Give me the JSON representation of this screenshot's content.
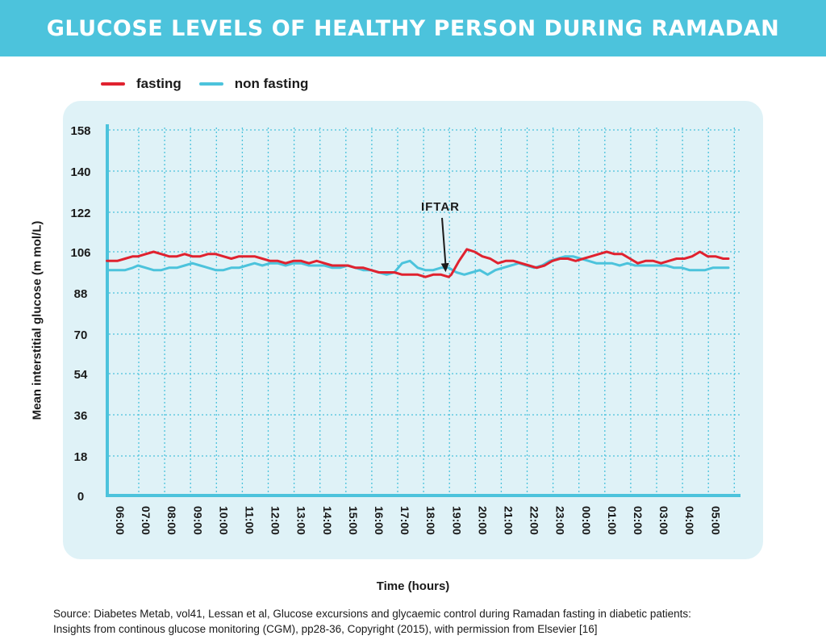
{
  "title": "GLUCOSE LEVELS OF HEALTHY PERSON DURING RAMADAN",
  "legend": {
    "fasting": "fasting",
    "non_fasting": "non fasting"
  },
  "colors": {
    "banner": "#4cc3dc",
    "panel": "#dff2f7",
    "grid": "#4cc3dc",
    "fasting": "#e0222f",
    "non_fasting": "#4cc3dc"
  },
  "source": {
    "line1": "Source: Diabetes Metab, vol41, Lessan et  al, Glucose excursions and glycaemic control during Ramadan fasting in diabetic patients:",
    "line2": "Insights from continous glucose monitoring (CGM), pp28-36, Copyright (2015), with permission from Elsevier [16]"
  },
  "chart_data": {
    "type": "line",
    "xlabel": "Time (hours)",
    "ylabel": "Mean interstitial glucose (m mol/L)",
    "x_ticks": [
      "06:00",
      "07:00",
      "08:00",
      "09:00",
      "10:00",
      "11:00",
      "12:00",
      "13:00",
      "14:00",
      "15:00",
      "16:00",
      "17:00",
      "18:00",
      "19:00",
      "20:00",
      "21:00",
      "22:00",
      "23:00",
      "00:00",
      "01:00",
      "02:00",
      "03:00",
      "04:00",
      "05:00"
    ],
    "y_ticks": [
      0,
      18,
      36,
      54,
      70,
      88,
      106,
      122,
      140,
      158
    ],
    "grid": true,
    "legend_position": "top-left",
    "annotation": {
      "text": "IFTAR",
      "x": 19.1,
      "y": 95
    },
    "series": [
      {
        "name": "fasting",
        "color": "#e0222f",
        "x": [
          5.8,
          6.2,
          6.5,
          6.8,
          7.0,
          7.3,
          7.6,
          7.9,
          8.2,
          8.5,
          8.8,
          9.1,
          9.4,
          9.7,
          10.0,
          10.3,
          10.6,
          10.9,
          11.2,
          11.5,
          11.8,
          12.1,
          12.4,
          12.7,
          13.0,
          13.3,
          13.6,
          13.9,
          14.2,
          14.5,
          14.8,
          15.1,
          15.4,
          15.7,
          16.0,
          16.3,
          16.6,
          16.9,
          17.2,
          17.5,
          17.8,
          18.1,
          18.4,
          18.7,
          19.0,
          19.1,
          19.4,
          19.7,
          20.0,
          20.3,
          20.6,
          20.9,
          21.2,
          21.5,
          21.8,
          22.1,
          22.4,
          22.7,
          23.0,
          23.3,
          23.6,
          23.9,
          24.2,
          24.5,
          24.8,
          25.1,
          25.4,
          25.7,
          26.0,
          26.3,
          26.6,
          26.9,
          27.2,
          27.5,
          27.8,
          28.1,
          28.4,
          28.7,
          29.0,
          29.3,
          29.6,
          29.8
        ],
        "y": [
          102,
          102,
          103,
          104,
          104,
          105,
          106,
          105,
          104,
          104,
          105,
          104,
          104,
          105,
          105,
          104,
          103,
          104,
          104,
          104,
          103,
          102,
          102,
          101,
          102,
          102,
          101,
          102,
          101,
          100,
          100,
          100,
          99,
          99,
          98,
          97,
          97,
          97,
          96,
          96,
          96,
          95,
          96,
          96,
          95,
          96,
          102,
          107,
          106,
          104,
          103,
          101,
          102,
          102,
          101,
          100,
          99,
          100,
          102,
          103,
          103,
          102,
          103,
          104,
          105,
          106,
          105,
          105,
          103,
          101,
          102,
          102,
          101,
          102,
          103,
          103,
          104,
          106,
          104,
          104,
          103,
          103
        ]
      },
      {
        "name": "non fasting",
        "color": "#4cc3dc",
        "x": [
          5.8,
          6.2,
          6.5,
          6.8,
          7.0,
          7.3,
          7.6,
          7.9,
          8.2,
          8.5,
          8.8,
          9.1,
          9.4,
          9.7,
          10.0,
          10.3,
          10.6,
          10.9,
          11.2,
          11.5,
          11.8,
          12.1,
          12.4,
          12.7,
          13.0,
          13.3,
          13.6,
          13.9,
          14.2,
          14.5,
          14.8,
          15.1,
          15.4,
          15.7,
          16.0,
          16.3,
          16.6,
          16.9,
          17.2,
          17.5,
          17.8,
          18.1,
          18.4,
          18.7,
          19.0,
          19.3,
          19.6,
          19.9,
          20.2,
          20.5,
          20.8,
          21.1,
          21.4,
          21.7,
          22.0,
          22.3,
          22.6,
          22.9,
          23.2,
          23.5,
          23.8,
          24.1,
          24.4,
          24.7,
          25.0,
          25.3,
          25.6,
          25.9,
          26.2,
          26.5,
          26.8,
          27.1,
          27.4,
          27.7,
          28.0,
          28.3,
          28.6,
          28.9,
          29.2,
          29.5,
          29.8
        ],
        "y": [
          98,
          98,
          98,
          99,
          100,
          99,
          98,
          98,
          99,
          99,
          100,
          101,
          100,
          99,
          98,
          98,
          99,
          99,
          100,
          101,
          100,
          101,
          101,
          100,
          101,
          101,
          100,
          100,
          100,
          99,
          99,
          100,
          99,
          98,
          98,
          97,
          96,
          97,
          101,
          102,
          99,
          98,
          98,
          99,
          99,
          97,
          96,
          97,
          98,
          96,
          98,
          99,
          100,
          101,
          100,
          99,
          100,
          102,
          103,
          104,
          104,
          103,
          102,
          101,
          101,
          101,
          100,
          101,
          100,
          100,
          100,
          100,
          100,
          99,
          99,
          98,
          98,
          98,
          99,
          99,
          99
        ]
      }
    ]
  }
}
